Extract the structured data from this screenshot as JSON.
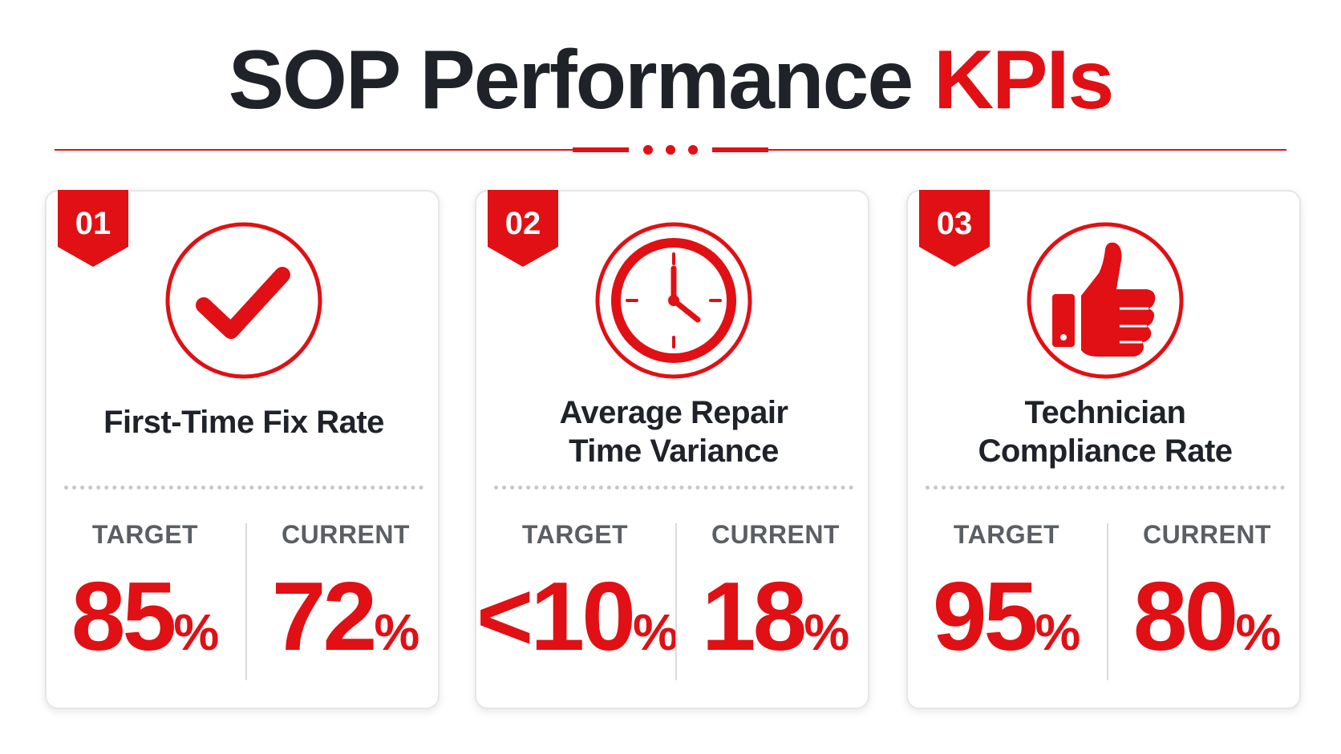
{
  "title": {
    "main": "SOP Performance",
    "accent": "KPIs"
  },
  "colors": {
    "accent": "#e01014",
    "text": "#1f2329",
    "label": "#5b5f64"
  },
  "labels": {
    "target": "TARGET",
    "current": "CURRENT"
  },
  "kpis": [
    {
      "number": "01",
      "icon": "checkmark-icon",
      "name_line1": "First-Time Fix Rate",
      "name_line2": "",
      "target": "85",
      "current": "72",
      "unit": "%"
    },
    {
      "number": "02",
      "icon": "clock-icon",
      "name_line1": "Average Repair",
      "name_line2": "Time Variance",
      "target": "<10",
      "current": "18",
      "unit": "%"
    },
    {
      "number": "03",
      "icon": "thumbs-up-icon",
      "name_line1": "Technician",
      "name_line2": "Compliance Rate",
      "target": "95",
      "current": "80",
      "unit": "%"
    }
  ]
}
